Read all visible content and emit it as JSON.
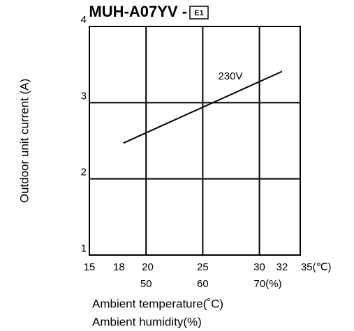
{
  "chart_data": {
    "type": "line",
    "title": "MUH-A07YV -",
    "title_badge": "E1",
    "y_label": "Outdoor unit current (A)",
    "x_label": "Ambient temperature(˚C)",
    "x2_label": "Ambient humidity(%)",
    "xlim": [
      15,
      33.6
    ],
    "ylim": [
      1,
      4
    ],
    "xticks": [
      15,
      18,
      20,
      25,
      30,
      32,
      {
        "value": 35,
        "label": "35(℃)"
      }
    ],
    "x2ticks": [
      {
        "value": 20,
        "label": "50"
      },
      {
        "value": 25,
        "label": "60"
      },
      {
        "value": 30,
        "label": "70(%)"
      }
    ],
    "xgrid": [
      20,
      25,
      30
    ],
    "yticks": [
      1,
      2,
      3,
      4
    ],
    "grid": true,
    "series": [
      {
        "name": "230V",
        "color": "#000000",
        "x": [
          18,
          32
        ],
        "values": [
          2.47,
          3.41
        ]
      }
    ]
  }
}
